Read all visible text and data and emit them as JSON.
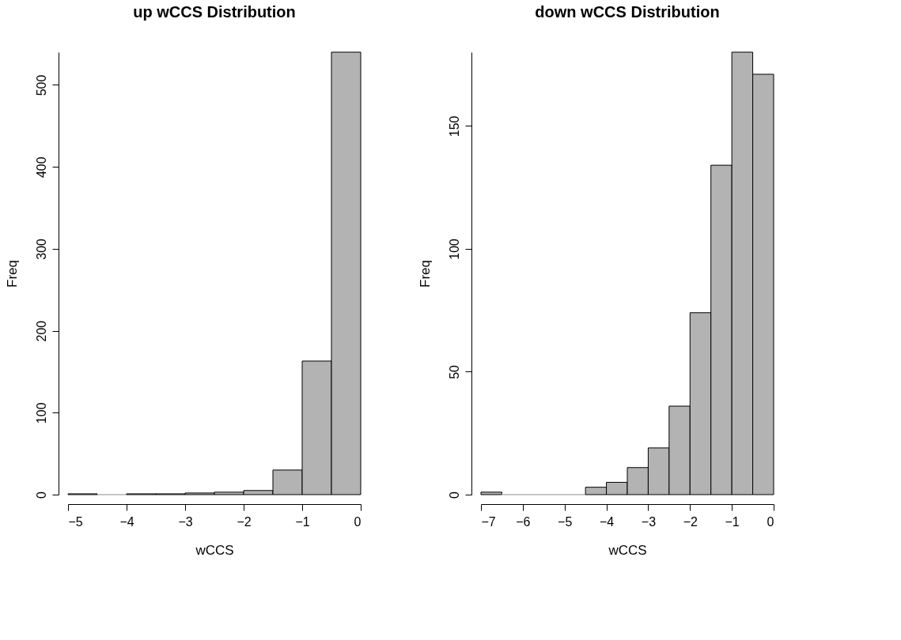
{
  "chart_data": [
    {
      "type": "histogram",
      "title": "up wCCS Distribution",
      "xlabel": "wCCS",
      "ylabel": "Freq",
      "color": "#b3b3b3",
      "bins": [
        -5,
        -4.5,
        -4,
        -3.5,
        -3,
        -2.5,
        -2,
        -1.5,
        -1,
        -0.5,
        0
      ],
      "values": [
        1,
        0,
        1,
        1,
        2,
        3,
        5,
        30,
        163,
        540
      ],
      "xlim": [
        -5,
        0
      ],
      "xticks": [
        -5,
        -4,
        -3,
        -2,
        -1,
        0
      ],
      "ylim": [
        0,
        540
      ],
      "yticks": [
        0,
        100,
        200,
        300,
        400,
        500
      ],
      "grid": false
    },
    {
      "type": "histogram",
      "title": "down wCCS Distribution",
      "xlabel": "wCCS",
      "ylabel": "Freq",
      "color": "#b3b3b3",
      "bins": [
        -7,
        -6.5,
        -6,
        -5.5,
        -5,
        -4.5,
        -4,
        -3.5,
        -3,
        -2.5,
        -2,
        -1.5,
        -1,
        -0.5,
        0
      ],
      "values": [
        1,
        0,
        0,
        0,
        0,
        3,
        5,
        11,
        19,
        36,
        74,
        134,
        180,
        171
      ],
      "xlim": [
        -7,
        0
      ],
      "xticks": [
        -7,
        -6,
        -5,
        -4,
        -3,
        -2,
        -1,
        0
      ],
      "ylim": [
        0,
        180
      ],
      "yticks": [
        0,
        50,
        100,
        150
      ],
      "grid": false
    }
  ]
}
